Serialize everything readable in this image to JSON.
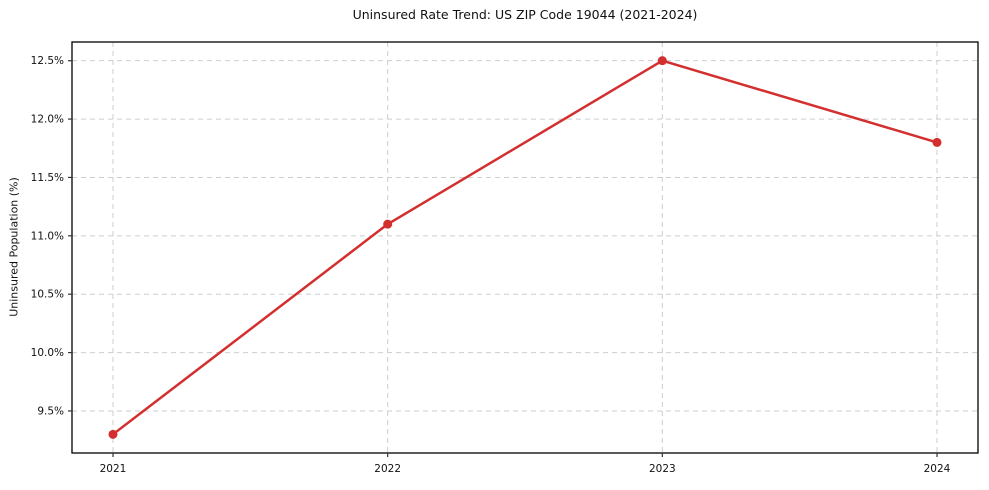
{
  "chart_data": {
    "type": "line",
    "title": "Uninsured Rate Trend: US ZIP Code 19044 (2021-2024)",
    "xlabel": "",
    "ylabel": "Uninsured Population (%)",
    "x": [
      2021,
      2022,
      2023,
      2024
    ],
    "xtick_labels": [
      "2021",
      "2022",
      "2023",
      "2024"
    ],
    "series": [
      {
        "name": "Uninsured Rate",
        "values": [
          9.3,
          11.1,
          12.5,
          11.8
        ]
      }
    ],
    "ylim": [
      9.14,
      12.66
    ],
    "yticks": [
      9.5,
      10.0,
      10.5,
      11.0,
      11.5,
      12.0,
      12.5
    ],
    "ytick_labels": [
      "9.5%",
      "10.0%",
      "10.5%",
      "11.0%",
      "11.5%",
      "12.0%",
      "12.5%"
    ],
    "grid": true,
    "grid_style": "dashed",
    "legend": "none",
    "colors": {
      "line": "#d32f2f",
      "marker": "#d32f2f",
      "grid": "#cdcdcd",
      "spine": "#000000",
      "tick": "#333333",
      "text": "#111111",
      "background": "#ffffff"
    }
  }
}
